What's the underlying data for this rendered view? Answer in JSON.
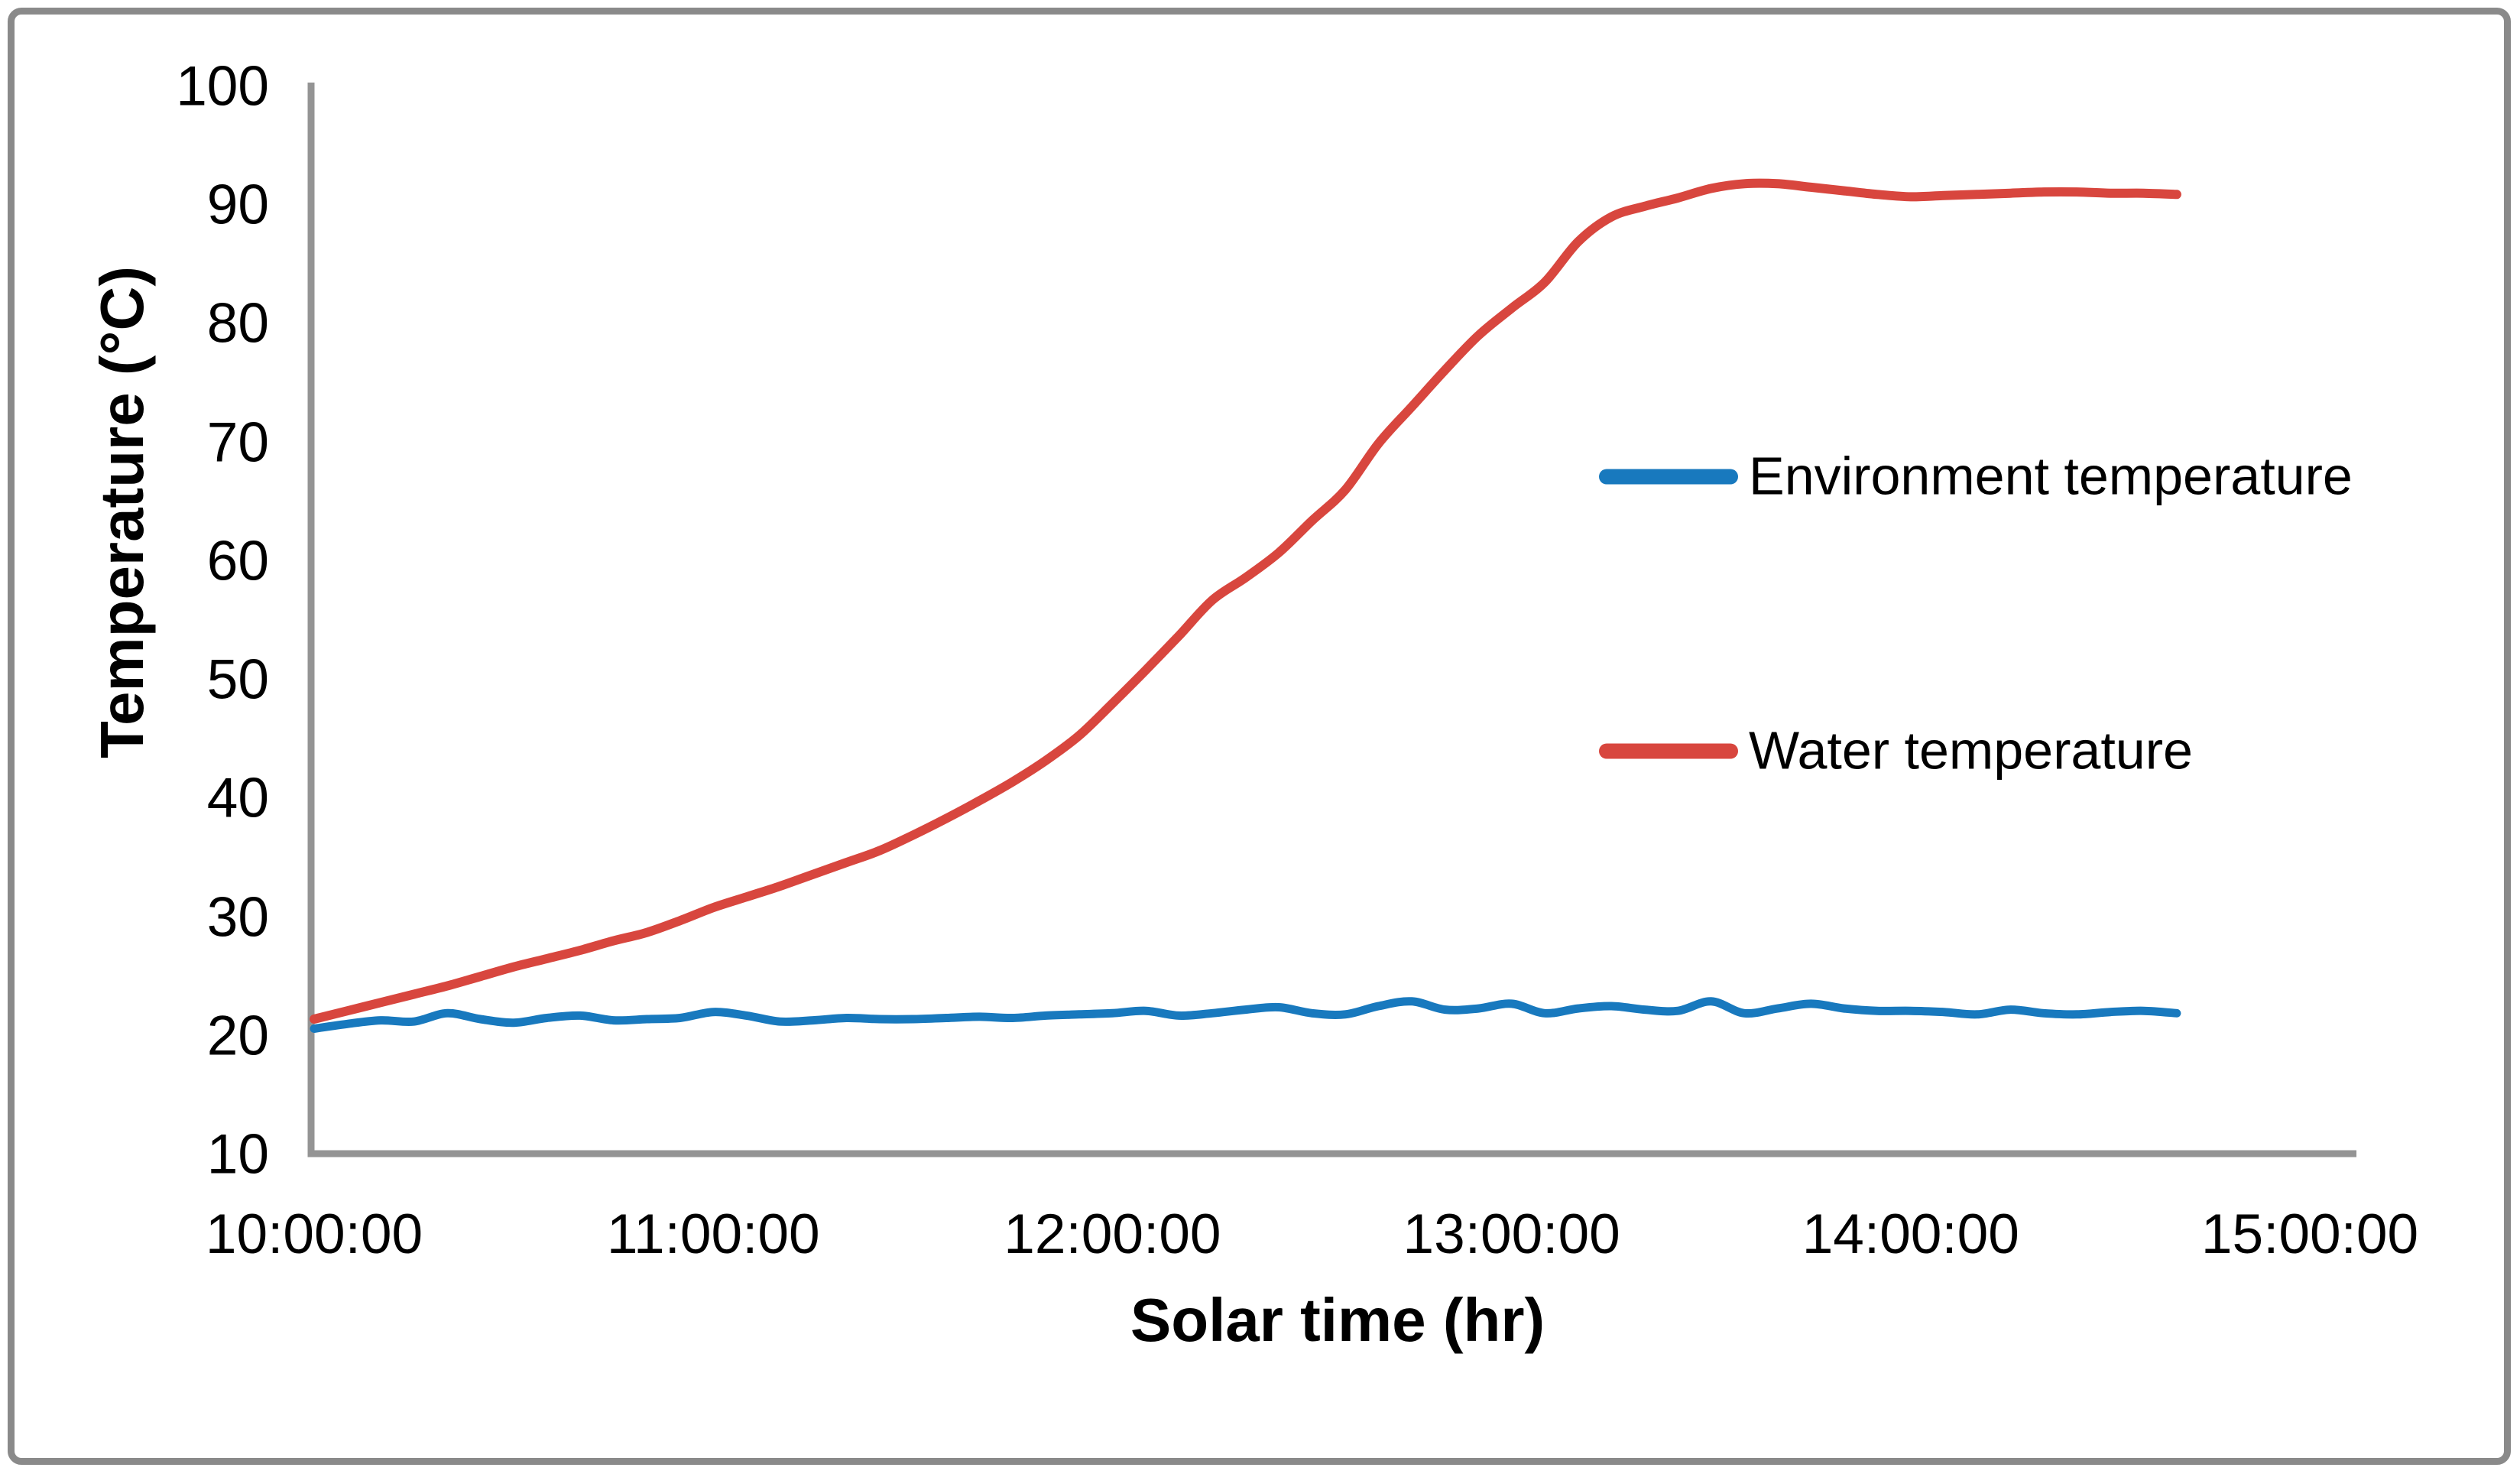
{
  "frame": {
    "border_color": "#8a8a8a",
    "axis_color": "#949494",
    "background": "#ffffff",
    "text_color": "#000000"
  },
  "chart_data": {
    "type": "line",
    "title": "",
    "xlabel": "Solar time (hr)",
    "ylabel": "Temperature (°C)",
    "ylim": [
      10,
      100
    ],
    "y_tick_step": 10,
    "grid": false,
    "legend_position": "middle-right",
    "y_tick_labels": [
      "100",
      "90",
      "80",
      "70",
      "60",
      "50",
      "40",
      "30",
      "20",
      "10"
    ],
    "x_tick_labels": [
      "10:00:00",
      "11:00:00",
      "12:00:00",
      "13:00:00",
      "14:00:00",
      "15:00:00"
    ],
    "x": [
      "10:00:00",
      "10:05:00",
      "10:10:00",
      "10:15:00",
      "10:20:00",
      "10:25:00",
      "10:30:00",
      "10:35:00",
      "10:40:00",
      "10:45:00",
      "10:50:00",
      "10:55:00",
      "11:00:00",
      "11:05:00",
      "11:10:00",
      "11:15:00",
      "11:20:00",
      "11:25:00",
      "11:30:00",
      "11:35:00",
      "11:40:00",
      "11:45:00",
      "11:50:00",
      "11:55:00",
      "12:00:00",
      "12:05:00",
      "12:10:00",
      "12:15:00",
      "12:20:00",
      "12:25:00",
      "12:30:00",
      "12:35:00",
      "12:40:00",
      "12:45:00",
      "12:50:00",
      "12:55:00",
      "13:00:00",
      "13:05:00",
      "13:10:00",
      "13:15:00",
      "13:20:00",
      "13:25:00",
      "13:30:00",
      "13:35:00",
      "13:40:00",
      "13:45:00",
      "13:50:00",
      "13:55:00",
      "14:00:00",
      "14:05:00",
      "14:10:00",
      "14:15:00",
      "14:20:00",
      "14:25:00",
      "14:30:00",
      "14:35:00",
      "14:40:00"
    ],
    "series": [
      {
        "name": "Environment temperature",
        "color": "#1879be",
        "stroke_width": 11,
        "values": [
          20.6,
          21.0,
          21.3,
          21.2,
          21.9,
          21.4,
          21.1,
          21.5,
          21.7,
          21.3,
          21.4,
          21.5,
          22.0,
          21.7,
          21.2,
          21.3,
          21.5,
          21.4,
          21.4,
          21.5,
          21.6,
          21.5,
          21.7,
          21.8,
          21.9,
          22.1,
          21.7,
          21.9,
          22.2,
          22.4,
          21.9,
          21.8,
          22.5,
          22.9,
          22.2,
          22.3,
          22.7,
          21.9,
          22.3,
          22.5,
          22.2,
          22.1,
          22.9,
          21.9,
          22.3,
          22.7,
          22.3,
          22.1,
          22.1,
          22.0,
          21.8,
          22.2,
          21.9,
          21.8,
          22.0,
          22.1,
          21.9
        ]
      },
      {
        "name": "Water temperature",
        "color": "#d8463e",
        "stroke_width": 12,
        "values": [
          21.4,
          22.1,
          22.8,
          23.5,
          24.2,
          25.0,
          25.8,
          26.5,
          27.2,
          28.0,
          28.7,
          29.7,
          30.8,
          31.7,
          32.6,
          33.6,
          34.6,
          35.6,
          36.9,
          38.3,
          39.8,
          41.4,
          43.2,
          45.3,
          48.0,
          50.8,
          53.7,
          56.7,
          58.6,
          60.7,
          63.4,
          66.0,
          69.9,
          73.0,
          76.1,
          79.0,
          81.3,
          83.5,
          86.9,
          89.0,
          89.9,
          90.6,
          91.4,
          91.8,
          91.8,
          91.5,
          91.2,
          90.9,
          90.7,
          90.8,
          90.9,
          91.0,
          91.1,
          91.1,
          91.0,
          91.0,
          90.9
        ]
      }
    ]
  }
}
